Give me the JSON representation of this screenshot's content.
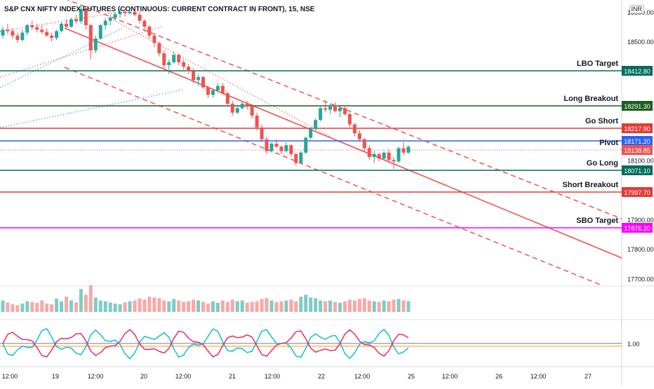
{
  "title": "S&P CNX NIFTY INDEX FUTURES (CONTINUOUS: CURRENT CONTRACT IN FRONT), 15, NSE",
  "currency": "INR",
  "colors": {
    "up": "#26a69a",
    "down": "#ef5350",
    "teal": "#006d5b",
    "green": "#1b5e20",
    "red": "#e53935",
    "blue": "#2962ff",
    "magenta": "#ff00ff",
    "channel": "#ef5350",
    "dotted_blue": "#2196f3",
    "osc1": "#00bcd4",
    "osc2": "#e91e63",
    "osc_ref": "#ff9800"
  },
  "chart_data": {
    "type": "candlestick",
    "title": "S&P CNX NIFTY INDEX FUTURES (CONTINUOUS: CURRENT CONTRACT IN FRONT), 15, NSE",
    "y_ticks": [
      18600,
      18500,
      18100,
      17900,
      17800,
      17700
    ],
    "y_tick_labels": [
      "18600.00",
      "18500.00",
      "18100.00",
      "17900.00",
      "17800.00",
      "17700.00"
    ],
    "ylim": [
      17675,
      18640
    ],
    "x_tick_labels": [
      "12:00",
      "19",
      "12:00",
      "20",
      "12:00",
      "21",
      "12:00",
      "22",
      "12:00",
      "25",
      "12:00",
      "26",
      "12:00",
      "27"
    ],
    "levels": [
      {
        "label": "LBO Target",
        "value": "18412.80",
        "color": "#006d5b"
      },
      {
        "label": "Long Breakout",
        "value": "18291.30",
        "color": "#1b5e20"
      },
      {
        "label": "Go Short",
        "value": "18217.90",
        "color": "#e53935"
      },
      {
        "label": "",
        "value": "18171.20",
        "color": "#2962ff"
      },
      {
        "label": "Pivot",
        "value": "18138.85",
        "color": "#ef5350"
      },
      {
        "label": "Go Long",
        "value": "18071.10",
        "color": "#006d5b"
      },
      {
        "label": "Short Breakout",
        "value": "17997.70",
        "color": "#e53935"
      },
      {
        "label": "SBO Target",
        "value": "17876.20",
        "color": "#ff00ff"
      }
    ],
    "candles": [
      [
        18520,
        18550,
        18510,
        18540
      ],
      [
        18540,
        18560,
        18525,
        18535
      ],
      [
        18535,
        18545,
        18510,
        18520
      ],
      [
        18520,
        18530,
        18495,
        18505
      ],
      [
        18505,
        18540,
        18500,
        18530
      ],
      [
        18530,
        18560,
        18520,
        18555
      ],
      [
        18555,
        18570,
        18540,
        18548
      ],
      [
        18548,
        18560,
        18530,
        18540
      ],
      [
        18540,
        18555,
        18525,
        18532
      ],
      [
        18532,
        18545,
        18515,
        18520
      ],
      [
        18520,
        18530,
        18500,
        18512
      ],
      [
        18512,
        18540,
        18505,
        18535
      ],
      [
        18535,
        18565,
        18530,
        18560
      ],
      [
        18560,
        18575,
        18545,
        18550
      ],
      [
        18550,
        18580,
        18545,
        18575
      ],
      [
        18575,
        18590,
        18560,
        18568
      ],
      [
        18568,
        18620,
        18560,
        18610
      ],
      [
        18610,
        18615,
        18540,
        18555
      ],
      [
        18555,
        18560,
        18440,
        18470
      ],
      [
        18470,
        18520,
        18460,
        18510
      ],
      [
        18510,
        18560,
        18505,
        18555
      ],
      [
        18555,
        18580,
        18540,
        18570
      ],
      [
        18570,
        18590,
        18555,
        18580
      ],
      [
        18580,
        18600,
        18570,
        18592
      ],
      [
        18592,
        18610,
        18580,
        18600
      ],
      [
        18600,
        18612,
        18585,
        18595
      ],
      [
        18595,
        18605,
        18590,
        18600
      ],
      [
        18600,
        18610,
        18585,
        18590
      ],
      [
        18590,
        18600,
        18560,
        18570
      ],
      [
        18570,
        18575,
        18540,
        18550
      ],
      [
        18550,
        18555,
        18510,
        18520
      ],
      [
        18520,
        18525,
        18480,
        18495
      ],
      [
        18495,
        18500,
        18450,
        18460
      ],
      [
        18460,
        18470,
        18410,
        18420
      ],
      [
        18420,
        18440,
        18390,
        18430
      ],
      [
        18430,
        18465,
        18425,
        18455
      ],
      [
        18455,
        18460,
        18420,
        18430
      ],
      [
        18430,
        18440,
        18405,
        18415
      ],
      [
        18415,
        18425,
        18390,
        18400
      ],
      [
        18400,
        18410,
        18360,
        18370
      ],
      [
        18370,
        18390,
        18350,
        18380
      ],
      [
        18380,
        18385,
        18340,
        18345
      ],
      [
        18345,
        18350,
        18310,
        18320
      ],
      [
        18320,
        18340,
        18310,
        18335
      ],
      [
        18335,
        18360,
        18330,
        18350
      ],
      [
        18350,
        18360,
        18320,
        18325
      ],
      [
        18325,
        18330,
        18280,
        18290
      ],
      [
        18290,
        18300,
        18250,
        18260
      ],
      [
        18260,
        18280,
        18255,
        18275
      ],
      [
        18275,
        18300,
        18270,
        18290
      ],
      [
        18290,
        18300,
        18270,
        18280
      ],
      [
        18280,
        18290,
        18240,
        18250
      ],
      [
        18250,
        18260,
        18200,
        18210
      ],
      [
        18210,
        18220,
        18160,
        18170
      ],
      [
        18170,
        18180,
        18120,
        18130
      ],
      [
        18130,
        18160,
        18125,
        18155
      ],
      [
        18155,
        18170,
        18140,
        18145
      ],
      [
        18145,
        18150,
        18120,
        18130
      ],
      [
        18130,
        18160,
        18125,
        18150
      ],
      [
        18150,
        18155,
        18110,
        18120
      ],
      [
        18120,
        18125,
        18080,
        18090
      ],
      [
        18090,
        18130,
        18085,
        18125
      ],
      [
        18125,
        18180,
        18120,
        18175
      ],
      [
        18175,
        18210,
        18170,
        18205
      ],
      [
        18205,
        18240,
        18200,
        18235
      ],
      [
        18235,
        18280,
        18230,
        18275
      ],
      [
        18275,
        18300,
        18260,
        18270
      ],
      [
        18270,
        18290,
        18255,
        18285
      ],
      [
        18285,
        18295,
        18260,
        18265
      ],
      [
        18265,
        18280,
        18245,
        18275
      ],
      [
        18275,
        18285,
        18250,
        18255
      ],
      [
        18255,
        18260,
        18210,
        18220
      ],
      [
        18220,
        18225,
        18180,
        18190
      ],
      [
        18190,
        18200,
        18160,
        18170
      ],
      [
        18170,
        18175,
        18130,
        18140
      ],
      [
        18140,
        18150,
        18100,
        18110
      ],
      [
        18110,
        18130,
        18090,
        18120
      ],
      [
        18120,
        18125,
        18095,
        18105
      ],
      [
        18105,
        18130,
        18100,
        18125
      ],
      [
        18125,
        18135,
        18090,
        18100
      ],
      [
        18100,
        18110,
        18070,
        18095
      ],
      [
        18095,
        18145,
        18090,
        18140
      ],
      [
        18140,
        18160,
        18115,
        18125
      ],
      [
        18125,
        18150,
        18120,
        18145
      ]
    ],
    "volume": [
      30,
      25,
      20,
      18,
      22,
      28,
      26,
      24,
      30,
      22,
      20,
      35,
      28,
      40,
      30,
      25,
      60,
      45,
      70,
      38,
      30,
      28,
      25,
      22,
      20,
      25,
      28,
      30,
      35,
      32,
      40,
      38,
      36,
      30,
      28,
      34,
      30,
      26,
      28,
      32,
      30,
      26,
      22,
      28,
      24,
      30,
      26,
      32,
      28,
      30,
      24,
      26,
      28,
      34,
      36,
      30,
      26,
      28,
      30,
      32,
      28,
      40,
      45,
      38,
      36,
      30,
      28,
      30,
      26,
      24,
      28,
      32,
      30,
      34,
      36,
      30,
      28,
      26,
      30,
      28,
      32,
      34,
      30,
      28
    ],
    "oscillator_level": "1.00"
  }
}
